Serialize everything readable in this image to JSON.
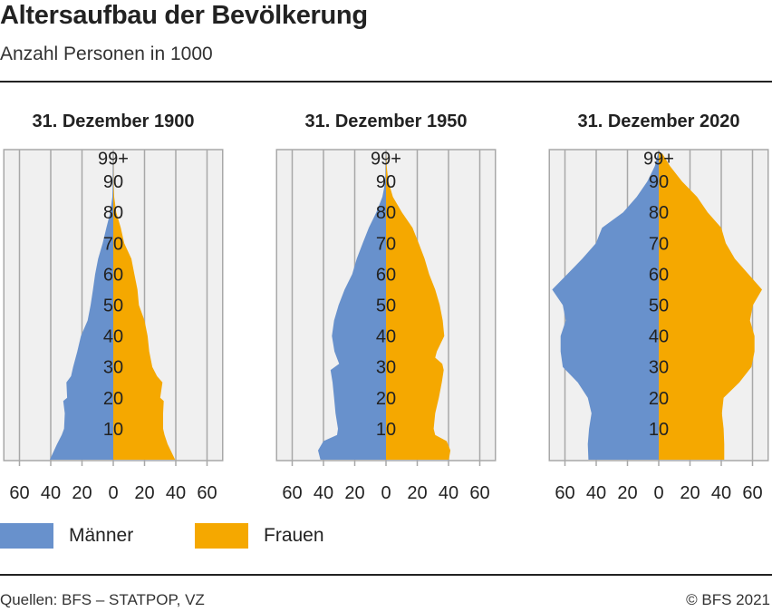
{
  "header": {
    "title": "Altersaufbau der Bevölkerung",
    "subtitle": "Anzahl Personen in 1000"
  },
  "colors": {
    "men": "#6891cc",
    "women": "#f5a800",
    "plot_bg": "#f0f0f0",
    "grid": "#a8a8a8"
  },
  "legend": {
    "men": "Männer",
    "women": "Frauen"
  },
  "footer": {
    "source": "Quellen: BFS – STATPOP, VZ",
    "copyright": "© BFS 2021"
  },
  "chart_data": [
    {
      "type": "population-pyramid",
      "title": "31. Dezember 1900",
      "xlim": [
        -70,
        70
      ],
      "xticks": [
        60,
        40,
        20,
        0,
        20,
        40,
        60
      ],
      "age_labels": [
        "10",
        "20",
        "30",
        "40",
        "50",
        "60",
        "70",
        "80",
        "90",
        "99+"
      ],
      "grid": true,
      "ages": [
        0,
        5,
        8,
        10,
        15,
        19,
        20,
        25,
        27,
        30,
        35,
        40,
        45,
        50,
        55,
        60,
        65,
        70,
        75,
        80,
        85,
        90,
        99
      ],
      "series": [
        {
          "name": "Männer",
          "values": [
            40.6,
            36,
            33,
            31.5,
            31,
            32,
            29.5,
            30,
            27,
            25.7,
            23,
            20.7,
            16.4,
            14.5,
            13,
            11.6,
            9.7,
            6.8,
            4.4,
            1.9,
            0.6,
            0.2,
            0
          ]
        },
        {
          "name": "Frauen",
          "values": [
            39.6,
            34.8,
            32.8,
            31.9,
            31.9,
            32.3,
            30,
            31.5,
            28,
            25,
            23,
            22,
            20,
            16.4,
            15.5,
            13.5,
            11.6,
            7,
            4.8,
            1.9,
            0.6,
            0.1,
            0
          ]
        }
      ]
    },
    {
      "type": "population-pyramid",
      "title": "31. Dezember 1950",
      "xlim": [
        -70,
        70
      ],
      "xticks": [
        60,
        40,
        20,
        0,
        20,
        40,
        60
      ],
      "age_labels": [
        "10",
        "20",
        "30",
        "40",
        "50",
        "60",
        "70",
        "80",
        "90",
        "99+"
      ],
      "grid": true,
      "ages": [
        0,
        3,
        6,
        8,
        10,
        15,
        20,
        25,
        29,
        31,
        33,
        35,
        40,
        45,
        50,
        55,
        60,
        65,
        70,
        75,
        80,
        85,
        90,
        95,
        99
      ],
      "series": [
        {
          "name": "Männer",
          "values": [
            42,
            43.5,
            40,
            31.3,
            30.7,
            32.3,
            33.2,
            34.2,
            35.5,
            30,
            31.5,
            33,
            34.6,
            33.2,
            30.3,
            26.5,
            21.6,
            18.7,
            14.9,
            11,
            6.2,
            2.3,
            0.4,
            0.1,
            0
          ]
        },
        {
          "name": "Frauen",
          "values": [
            40.2,
            41.2,
            38.8,
            31.5,
            30.5,
            31.5,
            33.8,
            35.7,
            36.9,
            36,
            31.5,
            32.5,
            37.3,
            36.3,
            34.4,
            31.5,
            27.6,
            24.7,
            20.9,
            17,
            10.2,
            4.4,
            1.5,
            0.4,
            0
          ]
        }
      ]
    },
    {
      "type": "population-pyramid",
      "title": "31. Dezember 2020",
      "xlim": [
        -70,
        70
      ],
      "xticks": [
        60,
        40,
        20,
        0,
        20,
        40,
        60
      ],
      "age_labels": [
        "10",
        "20",
        "30",
        "40",
        "50",
        "60",
        "70",
        "80",
        "90",
        "99+"
      ],
      "grid": true,
      "ages": [
        0,
        5,
        10,
        15,
        20,
        25,
        30,
        35,
        40,
        45,
        50,
        55,
        60,
        65,
        70,
        75,
        80,
        85,
        90,
        95,
        99
      ],
      "series": [
        {
          "name": "Männer",
          "values": [
            45,
            45.4,
            44.6,
            43,
            45.4,
            51.8,
            61.4,
            62.8,
            62.8,
            59.5,
            61.4,
            68.2,
            58.5,
            48.9,
            40.2,
            36.3,
            22.8,
            14.1,
            7.3,
            2.5,
            0.5
          ]
        },
        {
          "name": "Frauen",
          "values": [
            41.9,
            41.9,
            41.5,
            40.4,
            41.5,
            51.6,
            59.3,
            61.3,
            61.3,
            58.4,
            60.3,
            66.1,
            57.4,
            48.7,
            42.9,
            40,
            31.3,
            24.5,
            14.9,
            7.2,
            2.3
          ]
        }
      ]
    }
  ]
}
